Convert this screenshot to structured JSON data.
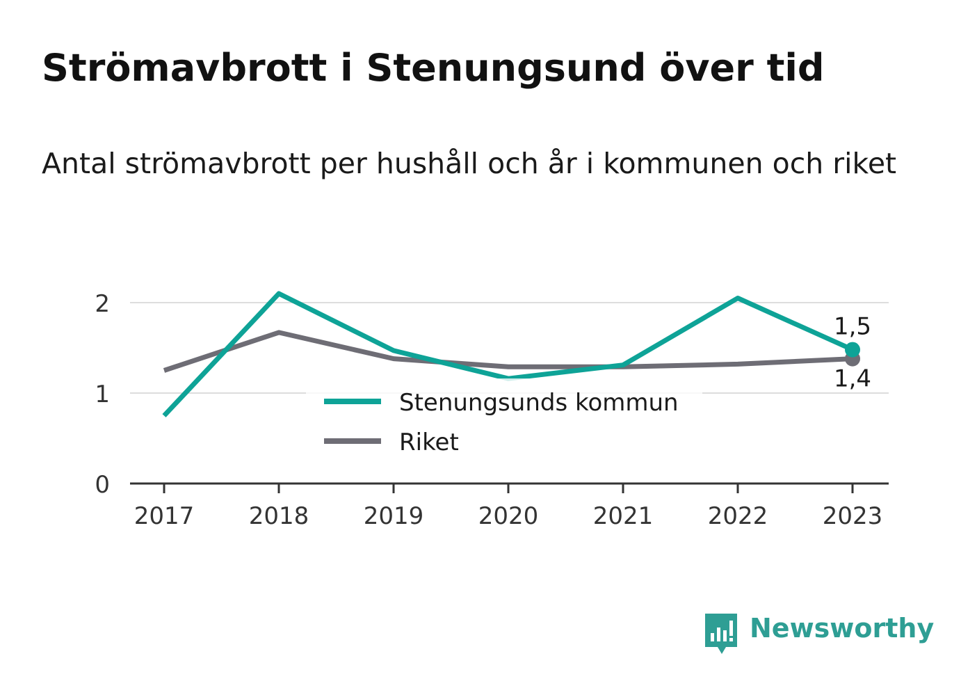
{
  "title": "Strömavbrott i Stenungsund över tid",
  "subtitle": "Antal strömavbrott per hushåll och år i kommunen och riket",
  "brand": {
    "name": "Newsworthy",
    "icon": "newsworthy-logo-icon",
    "color": "#2e9e94"
  },
  "chart_data": {
    "type": "line",
    "x": [
      "2017",
      "2018",
      "2019",
      "2020",
      "2021",
      "2022",
      "2023"
    ],
    "ylim": [
      0,
      2.1
    ],
    "yticks": [
      0,
      1,
      2
    ],
    "grid": true,
    "legend_position": "center",
    "series": [
      {
        "name": "Stenungsunds kommun",
        "color": "#0ea397",
        "values": [
          0.75,
          2.1,
          1.47,
          1.16,
          1.31,
          2.05,
          1.48
        ],
        "end_label": "1,5"
      },
      {
        "name": "Riket",
        "color": "#6e6d75",
        "values": [
          1.25,
          1.67,
          1.38,
          1.29,
          1.29,
          1.32,
          1.38
        ],
        "end_label": "1,4"
      }
    ]
  }
}
